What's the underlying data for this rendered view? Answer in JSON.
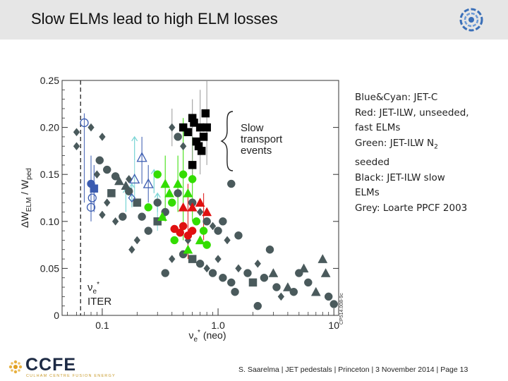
{
  "header": {
    "title": "Slow ELMs lead to high ELM losses"
  },
  "chart_data": {
    "type": "scatter",
    "title": "",
    "xlabel": "νe* (neo)",
    "ylabel": "ΔWELM / Wped",
    "xscale": "log",
    "xlim": [
      0.045,
      11
    ],
    "ylim": [
      0,
      0.25
    ],
    "x_ticks": [
      0.1,
      1.0,
      10
    ],
    "x_tick_labels": [
      "0.1",
      "1.0",
      "10"
    ],
    "y_ticks": [
      0,
      0.05,
      0.1,
      0.15,
      0.2,
      0.25
    ],
    "y_tick_labels": [
      "0",
      "0.05",
      "0.10",
      "0.15",
      "0.20",
      "0.25"
    ],
    "iter_line_x": 0.065,
    "iter_label_nu": "νe*",
    "iter_label": "ITER",
    "brace_label": [
      "Slow",
      "transport",
      "events"
    ],
    "image_id": "CP514.008-9c",
    "series": [
      {
        "name": "Grey: Loarte PPCF 2003",
        "color": "#4a5a5c",
        "points": [
          {
            "x": 0.06,
            "y": 0.195,
            "m": "diamond"
          },
          {
            "x": 0.06,
            "y": 0.18,
            "m": "diamond"
          },
          {
            "x": 0.08,
            "y": 0.2,
            "m": "diamond"
          },
          {
            "x": 0.09,
            "y": 0.15,
            "m": "diamond"
          },
          {
            "x": 0.095,
            "y": 0.165,
            "m": "circle"
          },
          {
            "x": 0.1,
            "y": 0.19,
            "m": "diamond"
          },
          {
            "x": 0.11,
            "y": 0.155,
            "m": "circle"
          },
          {
            "x": 0.12,
            "y": 0.13,
            "m": "square"
          },
          {
            "x": 0.13,
            "y": 0.148,
            "m": "circle"
          },
          {
            "x": 0.14,
            "y": 0.143,
            "m": "triangle"
          },
          {
            "x": 0.16,
            "y": 0.138,
            "m": "triangle"
          },
          {
            "x": 0.17,
            "y": 0.132,
            "m": "circle"
          },
          {
            "x": 0.15,
            "y": 0.105,
            "m": "circle"
          },
          {
            "x": 0.13,
            "y": 0.1,
            "m": "diamond"
          },
          {
            "x": 0.1,
            "y": 0.107,
            "m": "diamond"
          },
          {
            "x": 0.11,
            "y": 0.12,
            "m": "diamond"
          },
          {
            "x": 0.17,
            "y": 0.145,
            "m": "diamond"
          },
          {
            "x": 0.2,
            "y": 0.12,
            "m": "square"
          },
          {
            "x": 0.22,
            "y": 0.105,
            "m": "circle"
          },
          {
            "x": 0.25,
            "y": 0.09,
            "m": "circle"
          },
          {
            "x": 0.2,
            "y": 0.08,
            "m": "diamond"
          },
          {
            "x": 0.18,
            "y": 0.07,
            "m": "diamond"
          },
          {
            "x": 0.3,
            "y": 0.1,
            "m": "square"
          },
          {
            "x": 0.3,
            "y": 0.12,
            "m": "circle"
          },
          {
            "x": 0.35,
            "y": 0.11,
            "m": "circle"
          },
          {
            "x": 0.4,
            "y": 0.2,
            "m": "diamond"
          },
          {
            "x": 0.45,
            "y": 0.19,
            "m": "circle"
          },
          {
            "x": 0.5,
            "y": 0.18,
            "m": "diamond"
          },
          {
            "x": 0.45,
            "y": 0.13,
            "m": "circle"
          },
          {
            "x": 0.6,
            "y": 0.12,
            "m": "circle"
          },
          {
            "x": 0.7,
            "y": 0.11,
            "m": "diamond"
          },
          {
            "x": 0.8,
            "y": 0.1,
            "m": "circle"
          },
          {
            "x": 0.9,
            "y": 0.095,
            "m": "diamond"
          },
          {
            "x": 1.0,
            "y": 0.09,
            "m": "circle"
          },
          {
            "x": 1.2,
            "y": 0.08,
            "m": "diamond"
          },
          {
            "x": 1.5,
            "y": 0.085,
            "m": "circle"
          },
          {
            "x": 1.3,
            "y": 0.14,
            "m": "circle"
          },
          {
            "x": 0.5,
            "y": 0.065,
            "m": "circle"
          },
          {
            "x": 0.6,
            "y": 0.06,
            "m": "square"
          },
          {
            "x": 0.7,
            "y": 0.055,
            "m": "circle"
          },
          {
            "x": 0.8,
            "y": 0.05,
            "m": "diamond"
          },
          {
            "x": 0.9,
            "y": 0.045,
            "m": "circle"
          },
          {
            "x": 1.0,
            "y": 0.06,
            "m": "diamond"
          },
          {
            "x": 1.1,
            "y": 0.04,
            "m": "circle"
          },
          {
            "x": 1.3,
            "y": 0.035,
            "m": "circle"
          },
          {
            "x": 1.5,
            "y": 0.05,
            "m": "diamond"
          },
          {
            "x": 1.8,
            "y": 0.045,
            "m": "circle"
          },
          {
            "x": 2.0,
            "y": 0.035,
            "m": "square"
          },
          {
            "x": 2.2,
            "y": 0.055,
            "m": "diamond"
          },
          {
            "x": 2.5,
            "y": 0.04,
            "m": "circle"
          },
          {
            "x": 2.8,
            "y": 0.07,
            "m": "circle"
          },
          {
            "x": 3.0,
            "y": 0.045,
            "m": "triangle"
          },
          {
            "x": 3.2,
            "y": 0.03,
            "m": "circle"
          },
          {
            "x": 3.5,
            "y": 0.02,
            "m": "diamond"
          },
          {
            "x": 4.0,
            "y": 0.03,
            "m": "triangle"
          },
          {
            "x": 4.5,
            "y": 0.025,
            "m": "circle"
          },
          {
            "x": 5.0,
            "y": 0.045,
            "m": "circle"
          },
          {
            "x": 5.5,
            "y": 0.05,
            "m": "triangle"
          },
          {
            "x": 6.0,
            "y": 0.035,
            "m": "circle"
          },
          {
            "x": 7.0,
            "y": 0.025,
            "m": "triangle"
          },
          {
            "x": 8.0,
            "y": 0.06,
            "m": "triangle"
          },
          {
            "x": 9.0,
            "y": 0.02,
            "m": "circle"
          },
          {
            "x": 10.0,
            "y": 0.012,
            "m": "circle"
          },
          {
            "x": 8.5,
            "y": 0.045,
            "m": "triangle"
          },
          {
            "x": 2.2,
            "y": 0.01,
            "m": "circle"
          },
          {
            "x": 1.4,
            "y": 0.025,
            "m": "circle"
          },
          {
            "x": 0.35,
            "y": 0.045,
            "m": "circle"
          },
          {
            "x": 0.4,
            "y": 0.06,
            "m": "diamond"
          },
          {
            "x": 0.55,
            "y": 0.08,
            "m": "diamond"
          },
          {
            "x": 1.1,
            "y": 0.1,
            "m": "circle"
          }
        ]
      },
      {
        "name": "Blue&Cyan: JET-C",
        "color": "#3a5bb0",
        "points": [
          {
            "x": 0.07,
            "y": 0.205,
            "m": "circle-open"
          },
          {
            "x": 0.08,
            "y": 0.14,
            "m": "circle"
          },
          {
            "x": 0.085,
            "y": 0.135,
            "m": "square"
          },
          {
            "x": 0.08,
            "y": 0.115,
            "m": "circle-open"
          },
          {
            "x": 0.082,
            "y": 0.125,
            "m": "circle-open"
          },
          {
            "x": 0.19,
            "y": 0.145,
            "m": "triangle-open"
          },
          {
            "x": 0.22,
            "y": 0.168,
            "m": "triangle-open"
          },
          {
            "x": 0.25,
            "y": 0.14,
            "m": "triangle-open"
          },
          {
            "x": 0.18,
            "y": 0.125,
            "m": "diamond-open"
          }
        ]
      },
      {
        "name": "Red: JET-ILW, unseeded, fast ELMs",
        "color": "#e01010",
        "points": [
          {
            "x": 0.42,
            "y": 0.092,
            "m": "circle"
          },
          {
            "x": 0.47,
            "y": 0.088,
            "m": "circle"
          },
          {
            "x": 0.5,
            "y": 0.095,
            "m": "circle"
          },
          {
            "x": 0.55,
            "y": 0.085,
            "m": "circle"
          },
          {
            "x": 0.6,
            "y": 0.09,
            "m": "circle"
          },
          {
            "x": 0.5,
            "y": 0.115,
            "m": "triangle"
          },
          {
            "x": 0.6,
            "y": 0.115,
            "m": "triangle"
          },
          {
            "x": 0.7,
            "y": 0.12,
            "m": "triangle"
          },
          {
            "x": 0.8,
            "y": 0.11,
            "m": "triangle"
          }
        ]
      },
      {
        "name": "Green: JET-ILW N2 seeded",
        "color": "#33dd00",
        "points": [
          {
            "x": 0.25,
            "y": 0.115,
            "m": "circle"
          },
          {
            "x": 0.3,
            "y": 0.15,
            "m": "circle"
          },
          {
            "x": 0.35,
            "y": 0.14,
            "m": "triangle"
          },
          {
            "x": 0.38,
            "y": 0.13,
            "m": "triangle"
          },
          {
            "x": 0.4,
            "y": 0.12,
            "m": "circle"
          },
          {
            "x": 0.45,
            "y": 0.14,
            "m": "triangle"
          },
          {
            "x": 0.5,
            "y": 0.15,
            "m": "circle"
          },
          {
            "x": 0.55,
            "y": 0.13,
            "m": "triangle"
          },
          {
            "x": 0.6,
            "y": 0.145,
            "m": "circle"
          },
          {
            "x": 0.42,
            "y": 0.08,
            "m": "circle"
          },
          {
            "x": 0.55,
            "y": 0.07,
            "m": "triangle"
          },
          {
            "x": 0.65,
            "y": 0.1,
            "m": "circle"
          },
          {
            "x": 0.7,
            "y": 0.08,
            "m": "triangle"
          },
          {
            "x": 0.8,
            "y": 0.075,
            "m": "circle"
          },
          {
            "x": 0.33,
            "y": 0.105,
            "m": "triangle"
          },
          {
            "x": 0.75,
            "y": 0.09,
            "m": "circle"
          }
        ]
      },
      {
        "name": "Black: JET-ILW slow ELMs",
        "color": "#000000",
        "points": [
          {
            "x": 0.5,
            "y": 0.2,
            "m": "square"
          },
          {
            "x": 0.55,
            "y": 0.195,
            "m": "square"
          },
          {
            "x": 0.6,
            "y": 0.21,
            "m": "square"
          },
          {
            "x": 0.65,
            "y": 0.185,
            "m": "square"
          },
          {
            "x": 0.7,
            "y": 0.2,
            "m": "square"
          },
          {
            "x": 0.75,
            "y": 0.19,
            "m": "square"
          },
          {
            "x": 0.8,
            "y": 0.2,
            "m": "square"
          },
          {
            "x": 0.68,
            "y": 0.18,
            "m": "square"
          },
          {
            "x": 0.72,
            "y": 0.175,
            "m": "square"
          },
          {
            "x": 0.6,
            "y": 0.16,
            "m": "square"
          },
          {
            "x": 0.78,
            "y": 0.215,
            "m": "square"
          },
          {
            "x": 0.62,
            "y": 0.205,
            "m": "square"
          }
        ]
      },
      {
        "name": "cyan-arrows",
        "color": "#7fd6d6",
        "points": []
      }
    ]
  },
  "legend": {
    "lines": [
      {
        "text": "Blue&Cyan: JET-C"
      },
      {
        "text": "Red: JET-ILW, unseeded,"
      },
      {
        "text": "fast ELMs"
      },
      {
        "pre": "Green: JET-ILW N",
        "sub": "2"
      },
      {
        "text": "seeded"
      },
      {
        "text": "Black: JET-ILW slow"
      },
      {
        "text": "ELMs"
      },
      {
        "text": "Grey: Loarte PPCF 2003"
      }
    ]
  },
  "footer": {
    "text": "S. Saarelma | JET pedestals | Princeton | 3 November 2014 | Page 13"
  },
  "brand": {
    "name": "CCFE",
    "sub": "CULHAM CENTRE FUSION ENERGY"
  }
}
